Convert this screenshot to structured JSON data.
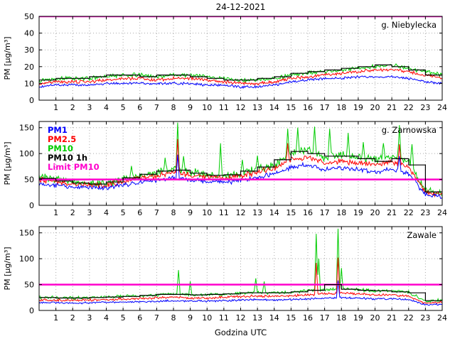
{
  "figure": {
    "title": "24-12-2021",
    "xlabel": "Godzina UTC",
    "background": "#ffffff"
  },
  "chart_data": [
    {
      "type": "line",
      "station": "g. Niebylecka",
      "ylabel": "PM [µg/m³]",
      "xlim": [
        0,
        24
      ],
      "xticks": [
        1,
        2,
        3,
        4,
        5,
        6,
        7,
        8,
        9,
        10,
        11,
        12,
        13,
        14,
        15,
        16,
        17,
        18,
        19,
        20,
        21,
        22,
        23,
        24
      ],
      "ylim": [
        0,
        50
      ],
      "yticks": [
        0,
        10,
        20,
        30,
        40,
        50
      ],
      "grid": true,
      "limit": {
        "name": "Limit PM10",
        "value": 50,
        "color": "#ff00cc"
      },
      "series": [
        {
          "name": "PM10",
          "color": "#00cc00",
          "noise": 1.4,
          "hourly": [
            12,
            13,
            13,
            13,
            14,
            15,
            15,
            14,
            15,
            15,
            14,
            13,
            12,
            12,
            13,
            15,
            16,
            17,
            18,
            19,
            20,
            21,
            19,
            17,
            15
          ],
          "spikes": []
        },
        {
          "name": "PM2.5",
          "color": "#ff0000",
          "noise": 1.1,
          "hourly": [
            10,
            11,
            11,
            11,
            12,
            13,
            13,
            12,
            13,
            13,
            12,
            11,
            10,
            10,
            11,
            13,
            14,
            15,
            16,
            17,
            18,
            18,
            17,
            15,
            13
          ],
          "spikes": []
        },
        {
          "name": "PM1",
          "color": "#0000ff",
          "noise": 0.9,
          "hourly": [
            8,
            9,
            9,
            9,
            10,
            10,
            10,
            10,
            10,
            10,
            9,
            9,
            8,
            8,
            9,
            11,
            12,
            13,
            13,
            14,
            14,
            14,
            13,
            11,
            10
          ],
          "spikes": []
        },
        {
          "name": "PM10 1h",
          "color": "#000000",
          "step": true,
          "hourly": [
            12,
            13,
            13,
            14,
            15,
            15,
            14,
            15,
            15,
            14,
            13,
            12,
            12,
            13,
            14,
            16,
            17,
            18,
            19,
            20,
            21,
            20,
            18,
            15
          ]
        }
      ]
    },
    {
      "type": "line",
      "station": "g. Zarnowska",
      "ylabel": "PM [µg/m³]",
      "xlim": [
        0,
        24
      ],
      "xticks": [
        1,
        2,
        3,
        4,
        5,
        6,
        7,
        8,
        9,
        10,
        11,
        12,
        13,
        14,
        15,
        16,
        17,
        18,
        19,
        20,
        21,
        22,
        23,
        24
      ],
      "ylim": [
        0,
        162
      ],
      "yticks": [
        0,
        50,
        100,
        150
      ],
      "grid": true,
      "limit": {
        "name": "Limit PM10",
        "value": 50,
        "color": "#ff00cc"
      },
      "legend": {
        "position": "top-left",
        "entries": [
          {
            "label": "PM1",
            "color": "#0000ff"
          },
          {
            "label": "PM2.5",
            "color": "#ff0000"
          },
          {
            "label": "PM10",
            "color": "#00cc00"
          },
          {
            "label": "PM10 1h",
            "color": "#000000"
          },
          {
            "label": "Limit PM10",
            "color": "#ff00cc"
          }
        ]
      },
      "series": [
        {
          "name": "PM10",
          "color": "#00cc00",
          "noise": 9,
          "hourly": [
            55,
            50,
            45,
            42,
            42,
            50,
            58,
            62,
            70,
            65,
            60,
            57,
            62,
            70,
            78,
            100,
            108,
            92,
            98,
            93,
            88,
            95,
            85,
            28,
            24
          ],
          "spikes": [
            [
              5.5,
              76
            ],
            [
              7.5,
              92
            ],
            [
              8.25,
              160
            ],
            [
              8.6,
              95
            ],
            [
              10.8,
              120
            ],
            [
              12.1,
              88
            ],
            [
              13.0,
              96
            ],
            [
              14.8,
              148
            ],
            [
              15.4,
              150
            ],
            [
              16.4,
              152
            ],
            [
              17.3,
              148
            ],
            [
              18.4,
              140
            ],
            [
              19.3,
              122
            ],
            [
              20.5,
              120
            ],
            [
              21.45,
              155
            ],
            [
              22.2,
              118
            ]
          ]
        },
        {
          "name": "PM2.5",
          "color": "#ff0000",
          "noise": 6.5,
          "hourly": [
            50,
            46,
            42,
            39,
            39,
            46,
            53,
            57,
            63,
            59,
            55,
            52,
            57,
            64,
            71,
            88,
            93,
            81,
            86,
            82,
            78,
            83,
            74,
            25,
            21
          ],
          "spikes": [
            [
              8.25,
              128
            ],
            [
              14.8,
              120
            ],
            [
              21.45,
              118
            ]
          ]
        },
        {
          "name": "PM1",
          "color": "#0000ff",
          "noise": 5.5,
          "hourly": [
            42,
            39,
            36,
            34,
            34,
            39,
            45,
            48,
            53,
            50,
            46,
            44,
            48,
            54,
            60,
            74,
            79,
            68,
            72,
            69,
            65,
            70,
            62,
            20,
            17
          ],
          "spikes": [
            [
              8.25,
              98
            ],
            [
              21.45,
              95
            ]
          ]
        },
        {
          "name": "PM10 1h",
          "color": "#000000",
          "step": true,
          "hourly": [
            52,
            47,
            43,
            41,
            45,
            53,
            60,
            66,
            68,
            62,
            58,
            59,
            66,
            74,
            88,
            104,
            100,
            95,
            95,
            90,
            85,
            90,
            78,
            26
          ]
        }
      ]
    },
    {
      "type": "line",
      "station": "Zawale",
      "ylabel": "PM [µg/m³]",
      "xlim": [
        0,
        24
      ],
      "xticks": [
        1,
        2,
        3,
        4,
        5,
        6,
        7,
        8,
        9,
        10,
        11,
        12,
        13,
        14,
        15,
        16,
        17,
        18,
        19,
        20,
        21,
        22,
        23,
        24
      ],
      "ylim": [
        0,
        162
      ],
      "yticks": [
        0,
        50,
        100,
        150
      ],
      "grid": true,
      "limit": {
        "name": "Limit PM10",
        "value": 50,
        "color": "#ff00cc"
      },
      "series": [
        {
          "name": "PM10",
          "color": "#00cc00",
          "noise": 3.5,
          "hourly": [
            25,
            25,
            24,
            25,
            26,
            27,
            28,
            30,
            32,
            30,
            30,
            32,
            33,
            35,
            34,
            35,
            38,
            40,
            42,
            40,
            38,
            38,
            35,
            18,
            20
          ],
          "spikes": [
            [
              8.3,
              78
            ],
            [
              9.0,
              56
            ],
            [
              12.9,
              62
            ],
            [
              13.4,
              56
            ],
            [
              16.5,
              148
            ],
            [
              16.65,
              100
            ],
            [
              17.8,
              158
            ],
            [
              18.0,
              82
            ]
          ]
        },
        {
          "name": "PM2.5",
          "color": "#ff0000",
          "noise": 2.8,
          "hourly": [
            20,
            20,
            19,
            20,
            21,
            22,
            23,
            24,
            26,
            24,
            24,
            26,
            27,
            28,
            27,
            28,
            30,
            32,
            34,
            32,
            30,
            30,
            28,
            14,
            16
          ],
          "spikes": [
            [
              16.5,
              92
            ],
            [
              17.8,
              102
            ]
          ]
        },
        {
          "name": "PM1",
          "color": "#0000ff",
          "noise": 2.2,
          "hourly": [
            15,
            15,
            14,
            15,
            16,
            16,
            17,
            18,
            19,
            18,
            18,
            19,
            20,
            21,
            20,
            21,
            22,
            24,
            25,
            24,
            22,
            22,
            21,
            11,
            12
          ],
          "spikes": [
            [
              17.8,
              58
            ]
          ]
        },
        {
          "name": "PM10 1h",
          "color": "#000000",
          "step": true,
          "hourly": [
            25,
            24,
            24,
            25,
            26,
            27,
            29,
            31,
            31,
            30,
            31,
            32,
            34,
            34,
            34,
            36,
            39,
            50,
            41,
            39,
            38,
            36,
            34,
            19
          ]
        }
      ]
    }
  ]
}
